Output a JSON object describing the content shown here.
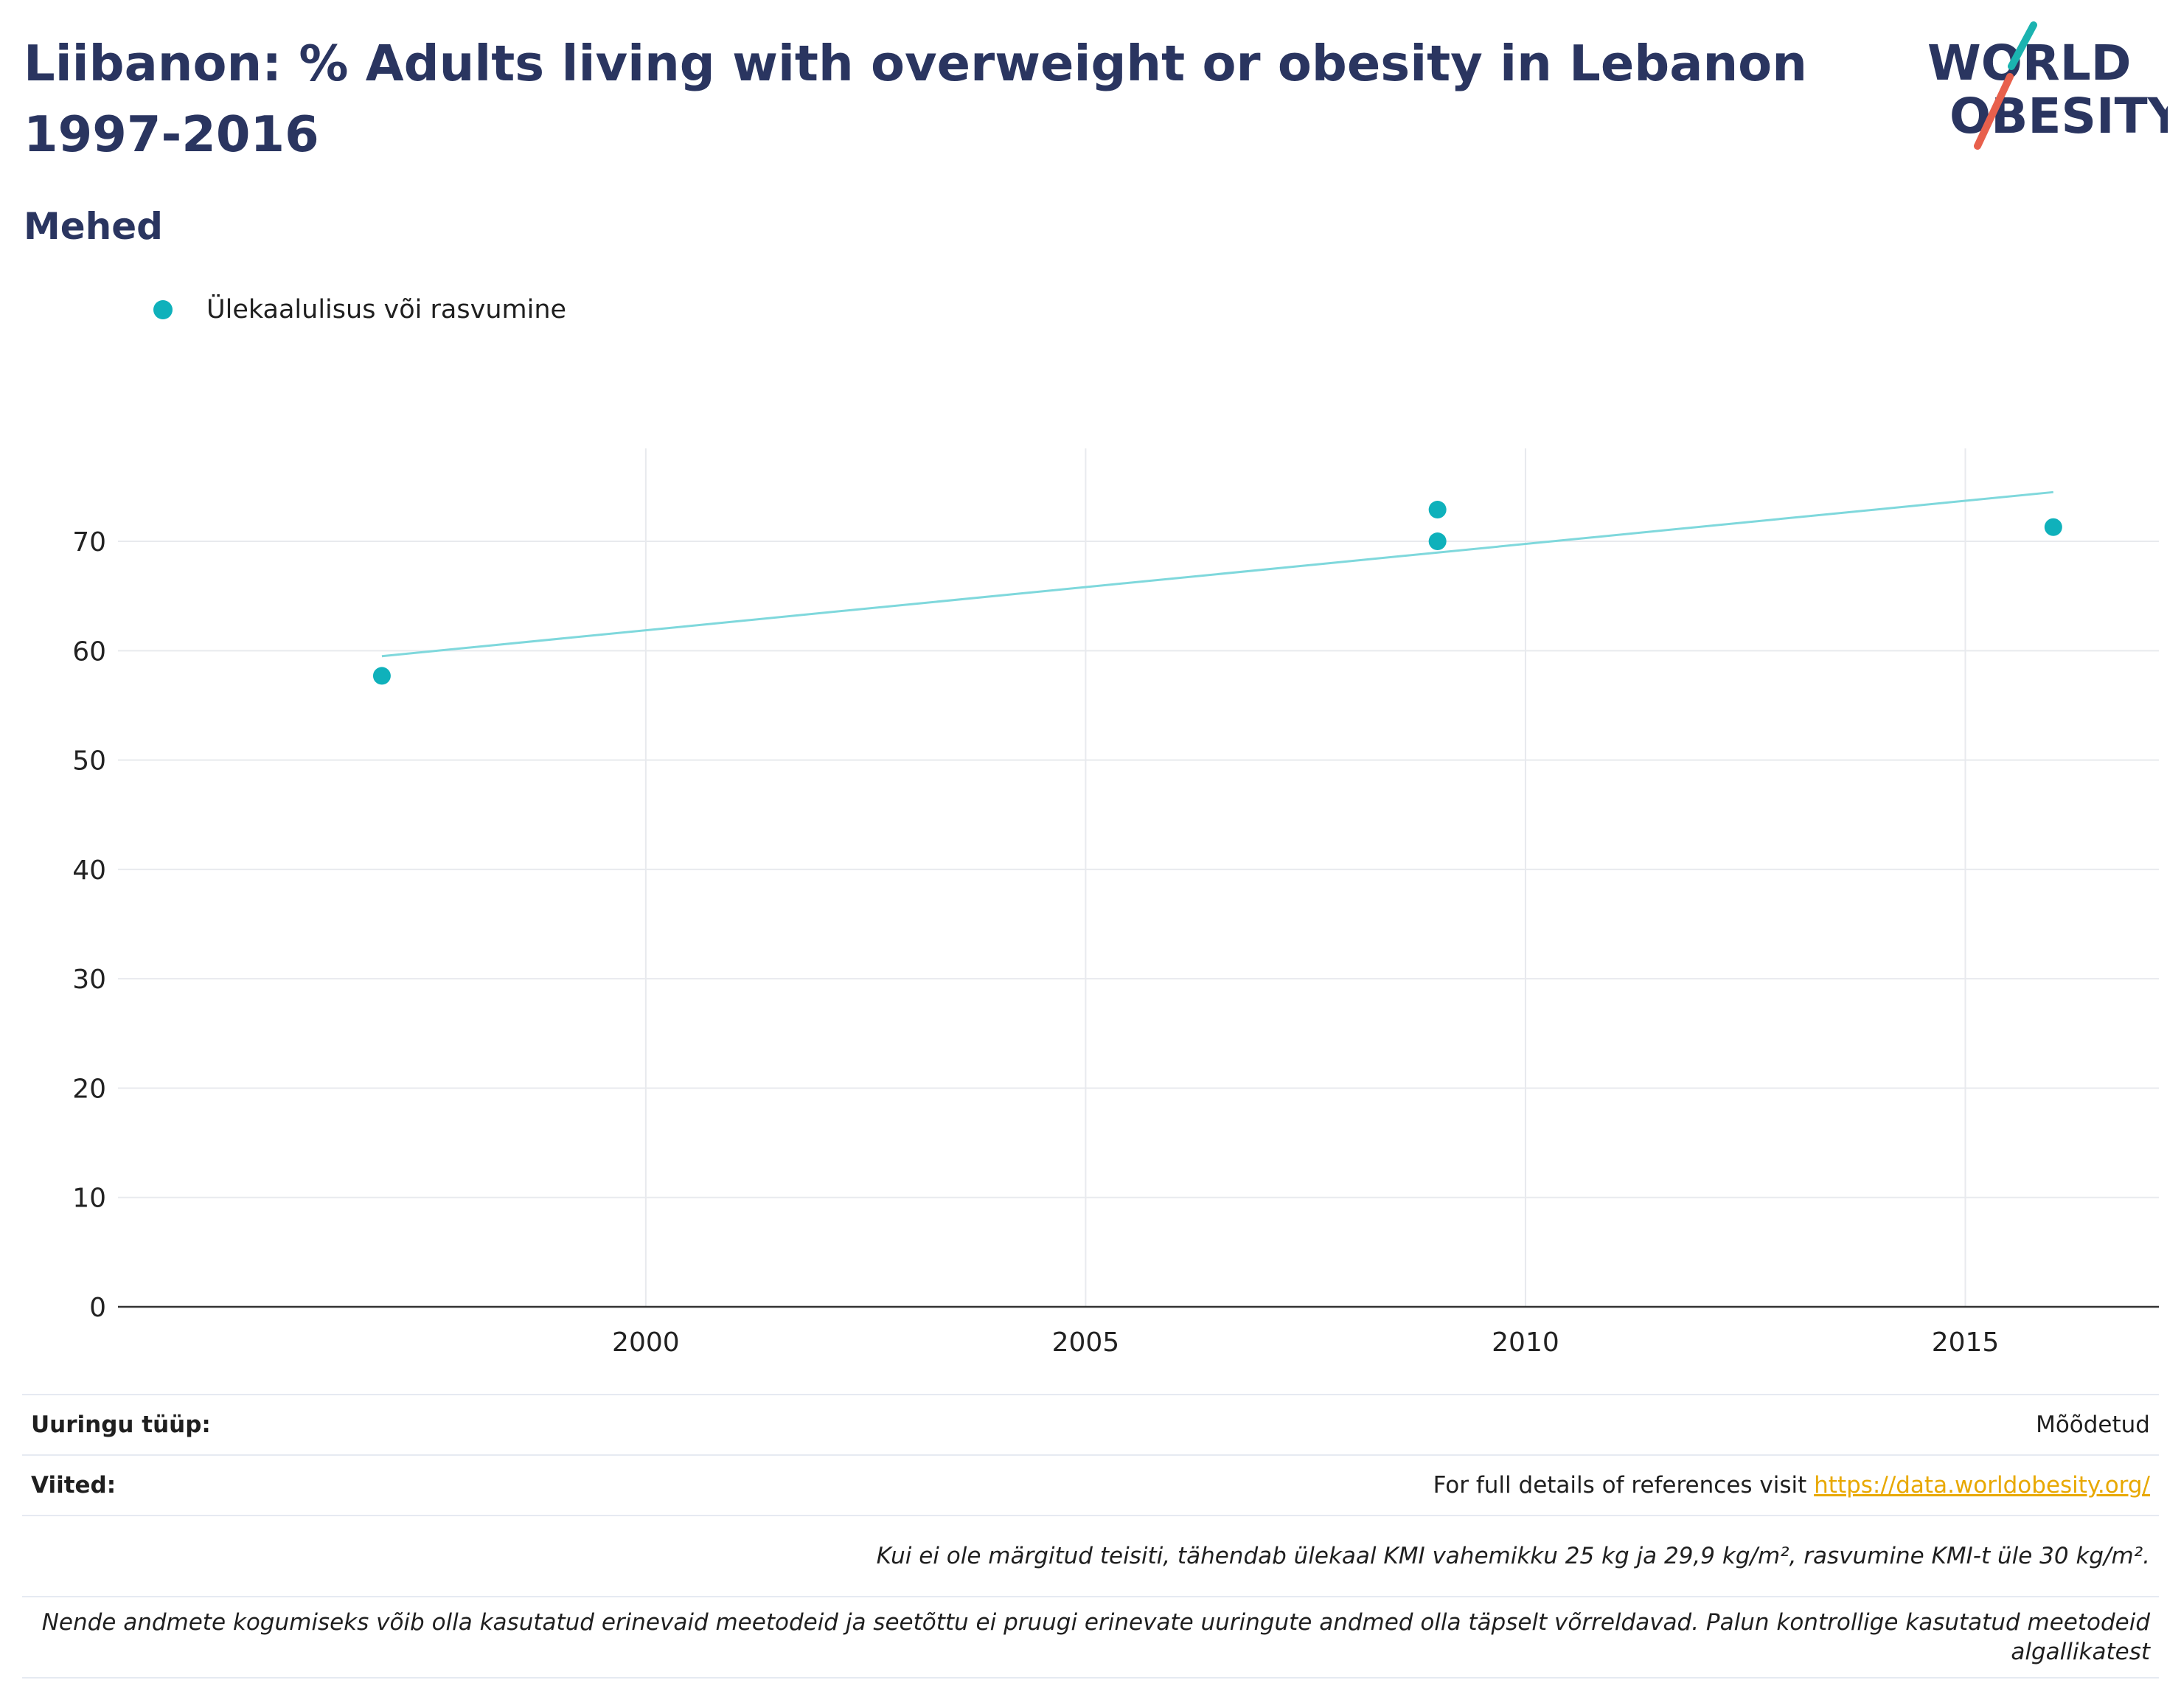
{
  "title": "Liibanon: % Adults living with overweight or obesity in Lebanon 1997-2016",
  "subtitle": "Mehed",
  "logo": {
    "line1": "WORLD",
    "line2": "OBESITY",
    "text_color": "#2a3560",
    "slash_teal": "#1bb3b0",
    "slash_red": "#e8604c"
  },
  "legend": {
    "label": "Ülekaalulisus või rasvumine",
    "color": "#0fb1bb"
  },
  "colors": {
    "marker": "#0fb1bb",
    "trend": "#7fd8dc",
    "grid": "#e8eaee",
    "axis": "#333333"
  },
  "chart_data": {
    "type": "scatter",
    "series": [
      {
        "name": "Ülekaalulisus või rasvumine",
        "points": [
          {
            "x": 1997,
            "y": 57.7
          },
          {
            "x": 2009,
            "y": 72.9
          },
          {
            "x": 2009,
            "y": 70.0
          },
          {
            "x": 2016,
            "y": 71.3
          }
        ]
      }
    ],
    "trendline": {
      "x": [
        1997,
        2016
      ],
      "y": [
        59.5,
        74.5
      ]
    },
    "xlim": [
      1994,
      2017.2
    ],
    "ylim": [
      0,
      78.5
    ],
    "x_ticks": [
      2000,
      2005,
      2010,
      2015
    ],
    "y_ticks": [
      0,
      10,
      20,
      30,
      40,
      50,
      60,
      70
    ],
    "grid": true
  },
  "info": {
    "survey_type_label": "Uuringu tüüp:",
    "survey_type_value": "Mõõdetud",
    "references_label": "Viited:",
    "references_text": "For full details of references visit ",
    "references_link": "https://data.worldobesity.org/",
    "note1": "Kui ei ole märgitud teisiti, tähendab ülekaal KMI vahemikku 25 kg ja 29,9 kg/m², rasvumine KMI-t üle 30 kg/m².",
    "note2": "Nende andmete kogumiseks võib olla kasutatud erinevaid meetodeid ja seetõttu ei pruugi erinevate uuringute andmed olla täpselt võrreldavad. Palun kontrollige kasutatud meetodeid algallikatest"
  }
}
